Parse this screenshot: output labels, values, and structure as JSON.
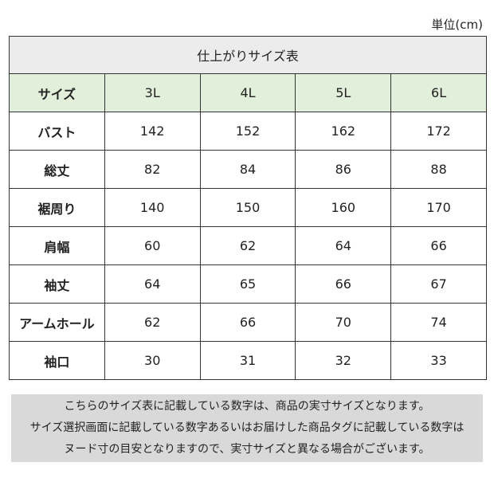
{
  "header": {
    "unit": "単位(cm)"
  },
  "table": {
    "title": "仕上がりサイズ表",
    "columns": [
      "サイズ",
      "3L",
      "4L",
      "5L",
      "6L"
    ],
    "rows": [
      [
        "バスト",
        142,
        152,
        162,
        172
      ],
      [
        "総丈",
        82,
        84,
        86,
        88
      ],
      [
        "裾周り",
        140,
        150,
        160,
        170
      ],
      [
        "肩幅",
        60,
        62,
        64,
        66
      ],
      [
        "袖丈",
        64,
        65,
        66,
        67
      ],
      [
        "アームホール",
        62,
        66,
        70,
        74
      ],
      [
        "袖口",
        30,
        31,
        32,
        33
      ]
    ]
  },
  "note": {
    "lines": [
      "こちらのサイズ表に記載している数字は、商品の実寸サイズとなります。",
      "サイズ選択画面に記載している数字あるいはお届けした商品タグに記載している数字は",
      "ヌード寸の目安となりますので、実寸サイズと異なる場合がございます。"
    ]
  }
}
